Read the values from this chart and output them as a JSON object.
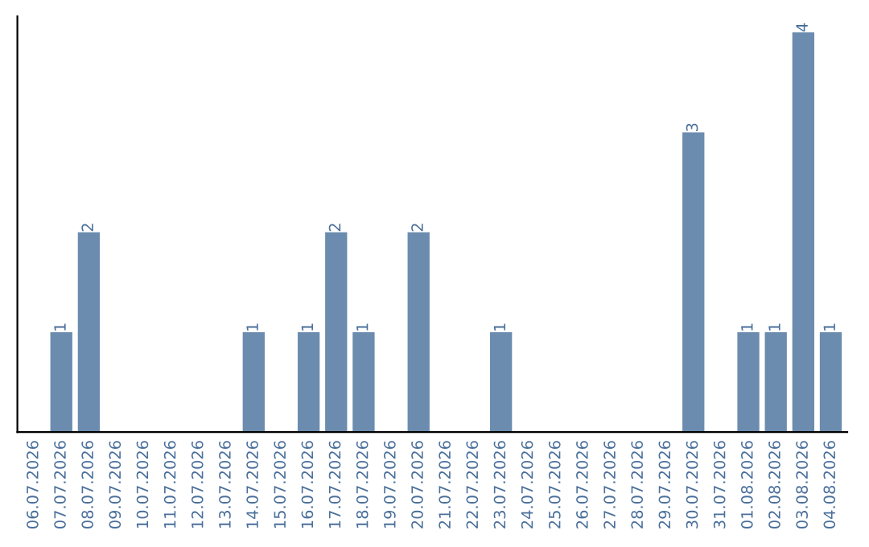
{
  "chart_data": {
    "type": "bar",
    "categories": [
      "06.07.2026",
      "07.07.2026",
      "08.07.2026",
      "09.07.2026",
      "10.07.2026",
      "11.07.2026",
      "12.07.2026",
      "13.07.2026",
      "14.07.2026",
      "15.07.2026",
      "16.07.2026",
      "17.07.2026",
      "18.07.2026",
      "19.07.2026",
      "20.07.2026",
      "21.07.2026",
      "22.07.2026",
      "23.07.2026",
      "24.07.2026",
      "25.07.2026",
      "26.07.2026",
      "27.07.2026",
      "28.07.2026",
      "29.07.2026",
      "30.07.2026",
      "31.07.2026",
      "01.08.2026",
      "02.08.2026",
      "03.08.2026",
      "04.08.2026"
    ],
    "values": [
      0,
      1,
      2,
      0,
      0,
      0,
      0,
      0,
      1,
      0,
      1,
      2,
      1,
      0,
      2,
      0,
      0,
      1,
      0,
      0,
      0,
      0,
      0,
      0,
      3,
      0,
      1,
      1,
      4,
      1
    ],
    "color": "#6b8cae",
    "value_labels": [
      null,
      "1",
      "2",
      null,
      null,
      null,
      null,
      null,
      "1",
      null,
      "1",
      "2",
      "1",
      null,
      "2",
      null,
      null,
      "1",
      null,
      null,
      null,
      null,
      null,
      null,
      "3",
      null,
      "1",
      "1",
      "4",
      "1"
    ],
    "tick_labels": "x",
    "grid": false,
    "legend": false
  }
}
